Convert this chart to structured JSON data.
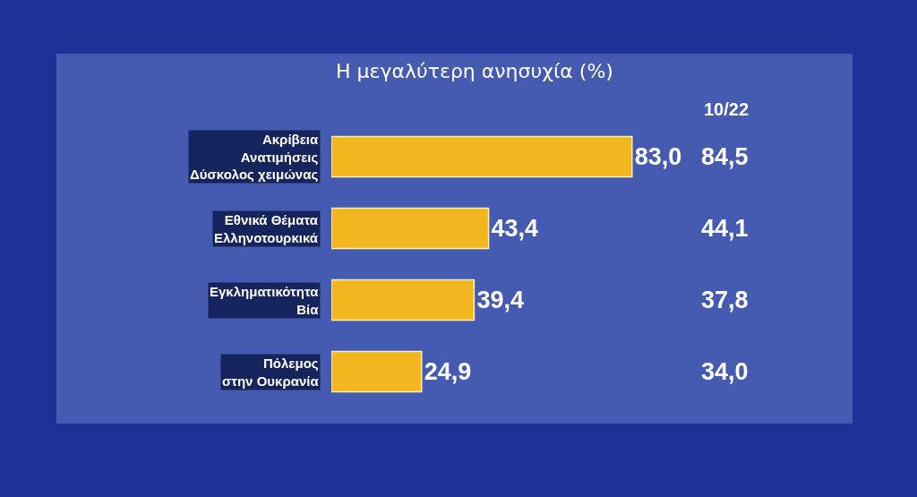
{
  "chart_data": {
    "type": "bar",
    "orientation": "horizontal",
    "title": "Η μεγαλύτερη ανησυχία (%)",
    "categories": [
      "Ακρίβεια\nΑνατιμήσεις\nΔύσκολος χειμώνας",
      "Εθνικά Θέματα\nΕλληνοτουρκικά",
      "Εγκληματικότητα\nΒία",
      "Πόλεμος\nστην Ουκρανία"
    ],
    "values": [
      83.0,
      43.4,
      39.4,
      24.9
    ],
    "value_labels": [
      "83,0",
      "43,4",
      "39,4",
      "24,9"
    ],
    "color": "#f2b61e",
    "annotations": [
      "10/22",
      "84,5",
      "44,1",
      "37,8",
      "34,0"
    ]
  }
}
